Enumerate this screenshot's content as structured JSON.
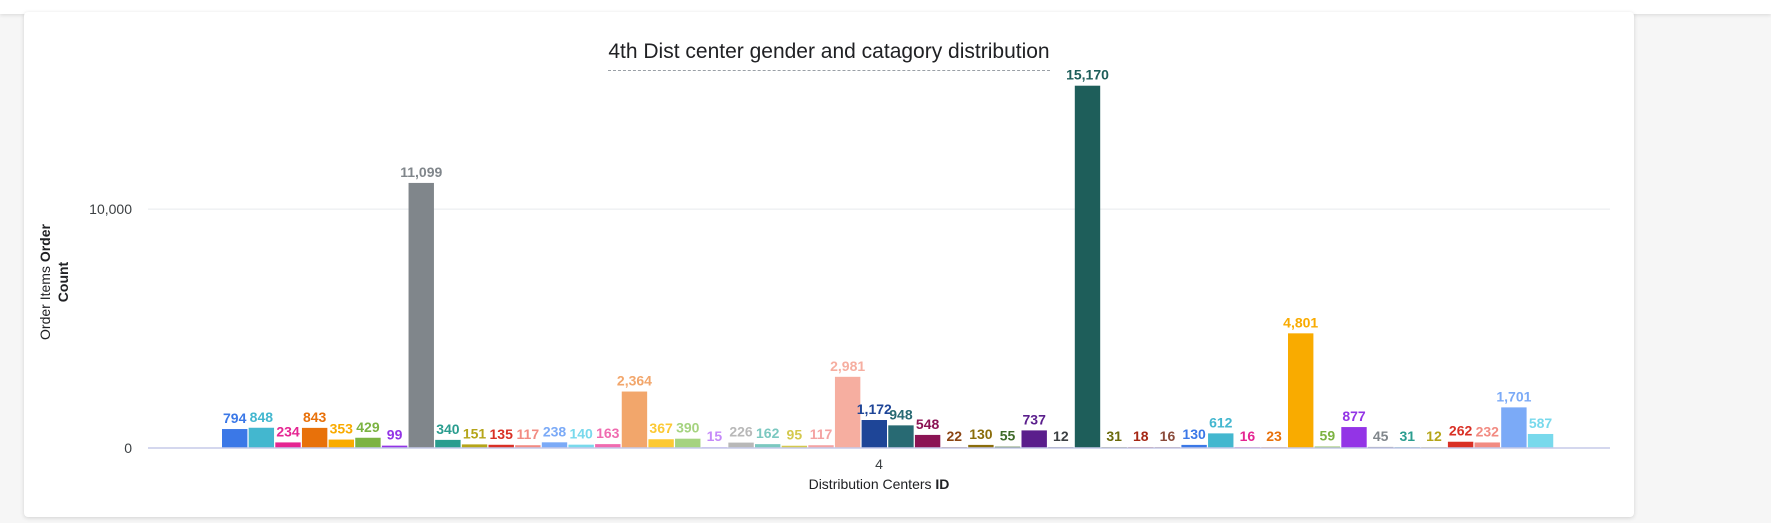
{
  "chart_data": {
    "type": "bar",
    "title": "4th Dist center gender and catagory distribution",
    "xlabel_parts": [
      "Distribution Centers ",
      "ID"
    ],
    "ylabel_line1_parts": [
      "Order Items ",
      "Order"
    ],
    "ylabel_line2": "Count",
    "categories": [
      "4"
    ],
    "y_ticks": [
      {
        "value": 0,
        "label": "0"
      },
      {
        "value": 10000,
        "label": "10,000"
      }
    ],
    "ylim": [
      0,
      17000
    ],
    "grid": true,
    "series": [
      {
        "value": 794,
        "label": "794",
        "color": "#3b78e7",
        "label_color": "#3b78e7"
      },
      {
        "value": 848,
        "label": "848",
        "color": "#43b7cf",
        "label_color": "#43b7cf"
      },
      {
        "value": 234,
        "label": "234",
        "color": "#e52592",
        "label_color": "#e52592"
      },
      {
        "value": 843,
        "label": "843",
        "color": "#e8710a",
        "label_color": "#e8710a"
      },
      {
        "value": 353,
        "label": "353",
        "color": "#f9ab00",
        "label_color": "#f9ab00"
      },
      {
        "value": 429,
        "label": "429",
        "color": "#7cb342",
        "label_color": "#7cb342"
      },
      {
        "value": 99,
        "label": "99",
        "color": "#9334e6",
        "label_color": "#9334e6"
      },
      {
        "value": 11099,
        "label": "11,099",
        "color": "#80868b",
        "label_color": "#80868b"
      },
      {
        "value": 340,
        "label": "340",
        "color": "#2a9d8f",
        "label_color": "#2a9d8f"
      },
      {
        "value": 151,
        "label": "151",
        "color": "#b5a519",
        "label_color": "#b5a519"
      },
      {
        "value": 135,
        "label": "135",
        "color": "#d93025",
        "label_color": "#d93025"
      },
      {
        "value": 117,
        "label": "117",
        "color": "#f28b82",
        "label_color": "#f28b82"
      },
      {
        "value": 238,
        "label": "238",
        "color": "#7baaf7",
        "label_color": "#7baaf7"
      },
      {
        "value": 140,
        "label": "140",
        "color": "#78d9ec",
        "label_color": "#78d9ec"
      },
      {
        "value": 163,
        "label": "163",
        "color": "#f06bb0",
        "label_color": "#f06bb0"
      },
      {
        "value": 2364,
        "label": "2,364",
        "color": "#f2a66b",
        "label_color": "#f2a66b"
      },
      {
        "value": 367,
        "label": "367",
        "color": "#fcc934",
        "label_color": "#fcc934"
      },
      {
        "value": 390,
        "label": "390",
        "color": "#a5d37f",
        "label_color": "#a5d37f"
      },
      {
        "value": 15,
        "label": "15",
        "color": "#c58af9",
        "label_color": "#c58af9"
      },
      {
        "value": 226,
        "label": "226",
        "color": "#b8b8b8",
        "label_color": "#b8b8b8"
      },
      {
        "value": 162,
        "label": "162",
        "color": "#7bc8c0",
        "label_color": "#7bc8c0"
      },
      {
        "value": 95,
        "label": "95",
        "color": "#d4c94e",
        "label_color": "#d4c94e"
      },
      {
        "value": 117,
        "label": "117",
        "color": "#f4a3a3",
        "label_color": "#f4a3a3"
      },
      {
        "value": 2981,
        "label": "2,981",
        "color": "#f6aea0",
        "label_color": "#f6aea0"
      },
      {
        "value": 1172,
        "label": "1,172",
        "color": "#1e4597",
        "label_color": "#1e4597"
      },
      {
        "value": 948,
        "label": "948",
        "color": "#286a73",
        "label_color": "#286a73"
      },
      {
        "value": 548,
        "label": "548",
        "color": "#8b1454",
        "label_color": "#8b1454"
      },
      {
        "value": 22,
        "label": "22",
        "color": "#8b4513",
        "label_color": "#8b4513"
      },
      {
        "value": 130,
        "label": "130",
        "color": "#8a6d0b",
        "label_color": "#8a6d0b"
      },
      {
        "value": 55,
        "label": "55",
        "color": "#3f6b2a",
        "label_color": "#3f6b2a"
      },
      {
        "value": 737,
        "label": "737",
        "color": "#5a1e8c",
        "label_color": "#5a1e8c"
      },
      {
        "value": 12,
        "label": "12",
        "color": "#3c4043",
        "label_color": "#3c4043"
      },
      {
        "value": 15170,
        "label": "15,170",
        "color": "#1e5e5a",
        "label_color": "#1e5e5a"
      },
      {
        "value": 31,
        "label": "31",
        "color": "#6b6a0a",
        "label_color": "#6b6a0a"
      },
      {
        "value": 18,
        "label": "18",
        "color": "#a52714",
        "label_color": "#a52714"
      },
      {
        "value": 16,
        "label": "16",
        "color": "#8a4a3a",
        "label_color": "#8a4a3a"
      },
      {
        "value": 130,
        "label": "130",
        "color": "#3b78e7",
        "label_color": "#3b78e7"
      },
      {
        "value": 612,
        "label": "612",
        "color": "#43b7cf",
        "label_color": "#43b7cf"
      },
      {
        "value": 16,
        "label": "16",
        "color": "#e52592",
        "label_color": "#e52592"
      },
      {
        "value": 23,
        "label": "23",
        "color": "#e8710a",
        "label_color": "#e8710a"
      },
      {
        "value": 4801,
        "label": "4,801",
        "color": "#f9ab00",
        "label_color": "#f9ab00"
      },
      {
        "value": 59,
        "label": "59",
        "color": "#7cb342",
        "label_color": "#7cb342"
      },
      {
        "value": 877,
        "label": "877",
        "color": "#9334e6",
        "label_color": "#9334e6"
      },
      {
        "value": 45,
        "label": "45",
        "color": "#80868b",
        "label_color": "#80868b"
      },
      {
        "value": 31,
        "label": "31",
        "color": "#2a9d8f",
        "label_color": "#2a9d8f"
      },
      {
        "value": 12,
        "label": "12",
        "color": "#b5a519",
        "label_color": "#b5a519"
      },
      {
        "value": 262,
        "label": "262",
        "color": "#d93025",
        "label_color": "#d93025"
      },
      {
        "value": 232,
        "label": "232",
        "color": "#f28b82",
        "label_color": "#f28b82"
      },
      {
        "value": 1701,
        "label": "1,701",
        "color": "#7baaf7",
        "label_color": "#7baaf7"
      },
      {
        "value": 587,
        "label": "587",
        "color": "#78d9ec",
        "label_color": "#78d9ec"
      }
    ]
  }
}
